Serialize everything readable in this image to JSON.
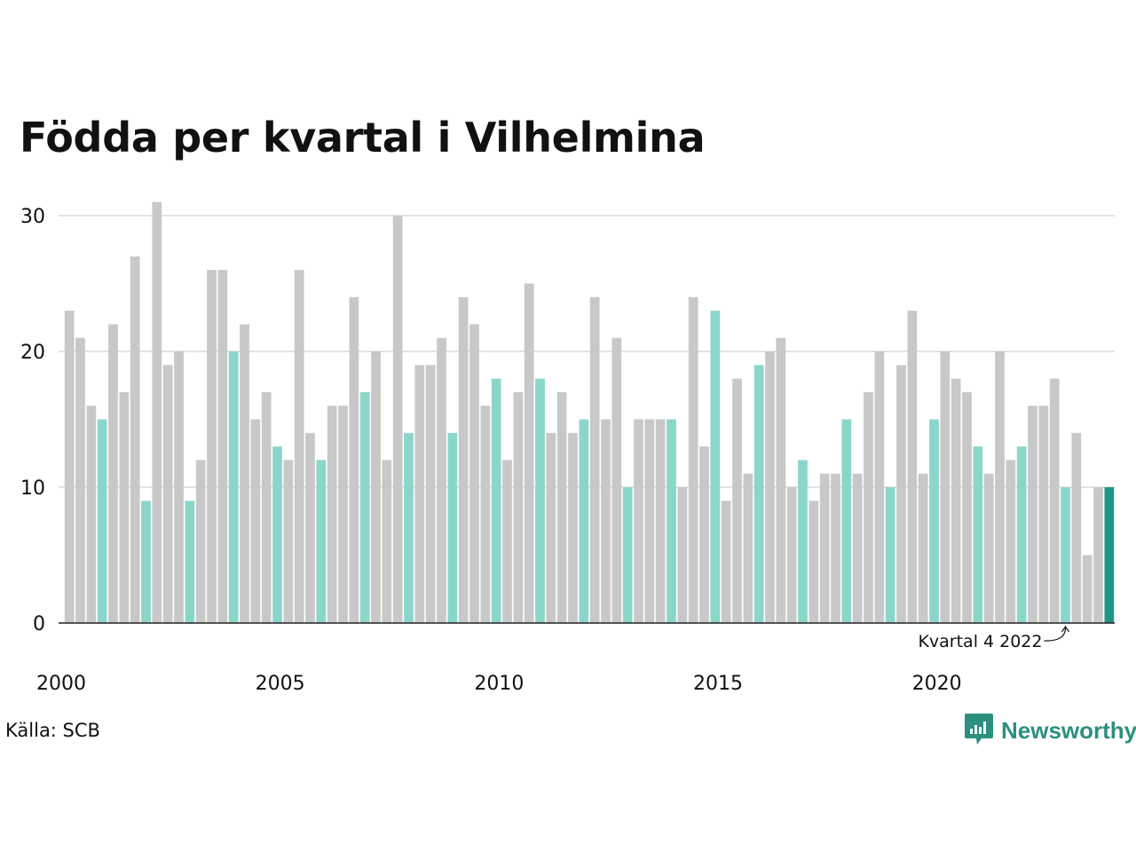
{
  "title": "Födda per kvartal i Vilhelmina",
  "source": "Källa: SCB",
  "brand": {
    "name": "Newsworthy",
    "icon": "bar-chart-speech-bubble-icon"
  },
  "colors": {
    "other_quarter": "#c8c8c8",
    "q4_quarter": "#8bd6cb",
    "latest_quarter": "#1f9484",
    "grid": "#e3e3e3",
    "axis": "#222222",
    "brand": "#2b9080"
  },
  "chart_data": {
    "type": "bar",
    "title": "Födda per kvartal i Vilhelmina",
    "xlabel": "",
    "ylabel": "",
    "ylim": [
      0,
      31
    ],
    "yticks": [
      0,
      10,
      20,
      30
    ],
    "xtick_labels": [
      "2000",
      "2005",
      "2010",
      "2015",
      "2020"
    ],
    "grid": true,
    "start": "2000 Q1",
    "end": "2023 Q4",
    "values": [
      23,
      21,
      16,
      15,
      22,
      17,
      27,
      9,
      31,
      19,
      20,
      9,
      12,
      26,
      26,
      20,
      22,
      15,
      17,
      13,
      12,
      26,
      14,
      12,
      16,
      16,
      24,
      17,
      20,
      12,
      30,
      14,
      19,
      19,
      21,
      14,
      24,
      22,
      16,
      18,
      12,
      17,
      25,
      18,
      14,
      17,
      14,
      15,
      24,
      15,
      21,
      10,
      15,
      15,
      15,
      15,
      10,
      24,
      13,
      23,
      9,
      18,
      11,
      19,
      20,
      21,
      10,
      12,
      9,
      11,
      11,
      15,
      11,
      17,
      20,
      10,
      19,
      23,
      11,
      15,
      20,
      18,
      17,
      13,
      11,
      20,
      12,
      13,
      16,
      16,
      18,
      10,
      14,
      5,
      10,
      10
    ],
    "annotation": {
      "text": "Kvartal 4 2022",
      "target": "2022 Q4"
    }
  }
}
